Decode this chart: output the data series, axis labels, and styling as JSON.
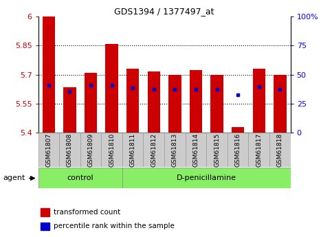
{
  "title": "GDS1394 / 1377497_at",
  "samples": [
    "GSM61807",
    "GSM61808",
    "GSM61809",
    "GSM61810",
    "GSM61811",
    "GSM61812",
    "GSM61813",
    "GSM61814",
    "GSM61815",
    "GSM61816",
    "GSM61817",
    "GSM61818"
  ],
  "transformed_count": [
    6.0,
    5.635,
    5.71,
    5.86,
    5.73,
    5.715,
    5.7,
    5.725,
    5.7,
    5.43,
    5.73,
    5.7
  ],
  "percentile_rank": [
    5.645,
    5.615,
    5.645,
    5.645,
    5.63,
    5.625,
    5.625,
    5.625,
    5.625,
    5.595,
    5.64,
    5.625
  ],
  "y_min": 5.4,
  "y_max": 6.0,
  "y_ticks": [
    5.4,
    5.55,
    5.7,
    5.85,
    6.0
  ],
  "y_tick_labels": [
    "5.4",
    "5.55",
    "5.7",
    "5.85",
    "6"
  ],
  "right_y_ticks_perc": [
    0.0,
    25.0,
    50.0,
    75.0,
    100.0
  ],
  "right_y_tick_labels": [
    "0",
    "25",
    "50",
    "75",
    "100%"
  ],
  "bar_color": "#cc0000",
  "dot_color": "#0000cc",
  "control_indices": [
    0,
    1,
    2,
    3
  ],
  "treatment_indices": [
    4,
    5,
    6,
    7,
    8,
    9,
    10,
    11
  ],
  "control_label": "control",
  "treatment_label": "D-penicillamine",
  "agent_label": "agent",
  "group_bg_color": "#88ee66",
  "tick_bg_color": "#cccccc",
  "legend_red": "transformed count",
  "legend_blue": "percentile rank within the sample",
  "bar_width": 0.6
}
